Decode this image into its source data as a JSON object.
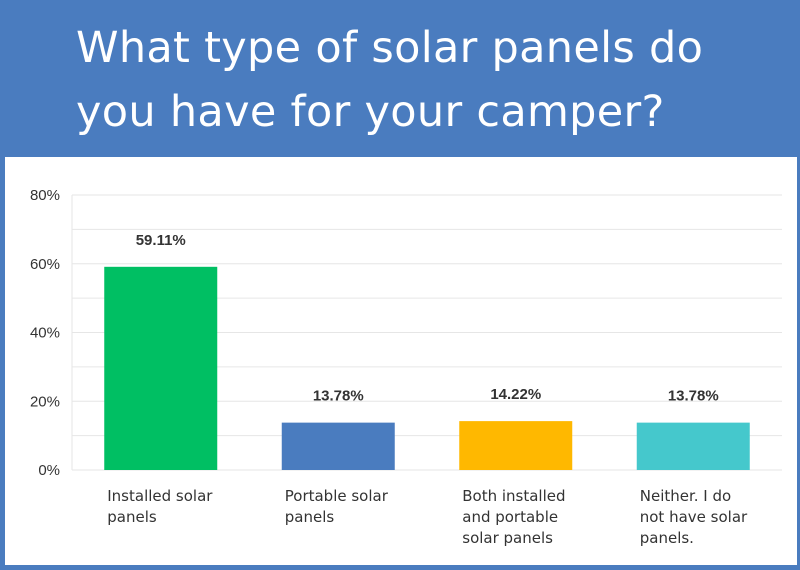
{
  "header": {
    "title_line1": "What type of solar panels do",
    "title_line2": "you have for your camper?"
  },
  "colors": {
    "header_bg": "#4a7cbf",
    "grid": "#e6e6e6",
    "axis_text": "#333333"
  },
  "chart_data": {
    "type": "bar",
    "title": "What type of solar panels do you have for your camper?",
    "categories": [
      [
        "Installed solar",
        "panels"
      ],
      [
        "Portable solar",
        "panels"
      ],
      [
        "Both installed",
        "and portable",
        "solar panels"
      ],
      [
        "Neither. I do",
        "not have solar",
        "panels."
      ]
    ],
    "values": [
      59.11,
      13.78,
      14.22,
      13.78
    ],
    "value_labels": [
      "59.11%",
      "13.78%",
      "14.22%",
      "13.78%"
    ],
    "bar_colors": [
      "#00bf63",
      "#4a7cbf",
      "#ffb800",
      "#45c8cc"
    ],
    "ylim": [
      0,
      80
    ],
    "yticks": [
      0,
      20,
      40,
      60,
      80
    ],
    "ytick_labels": [
      "0%",
      "20%",
      "40%",
      "60%",
      "80%"
    ],
    "xlabel": "",
    "ylabel": "",
    "grid": true,
    "legend": "none"
  }
}
